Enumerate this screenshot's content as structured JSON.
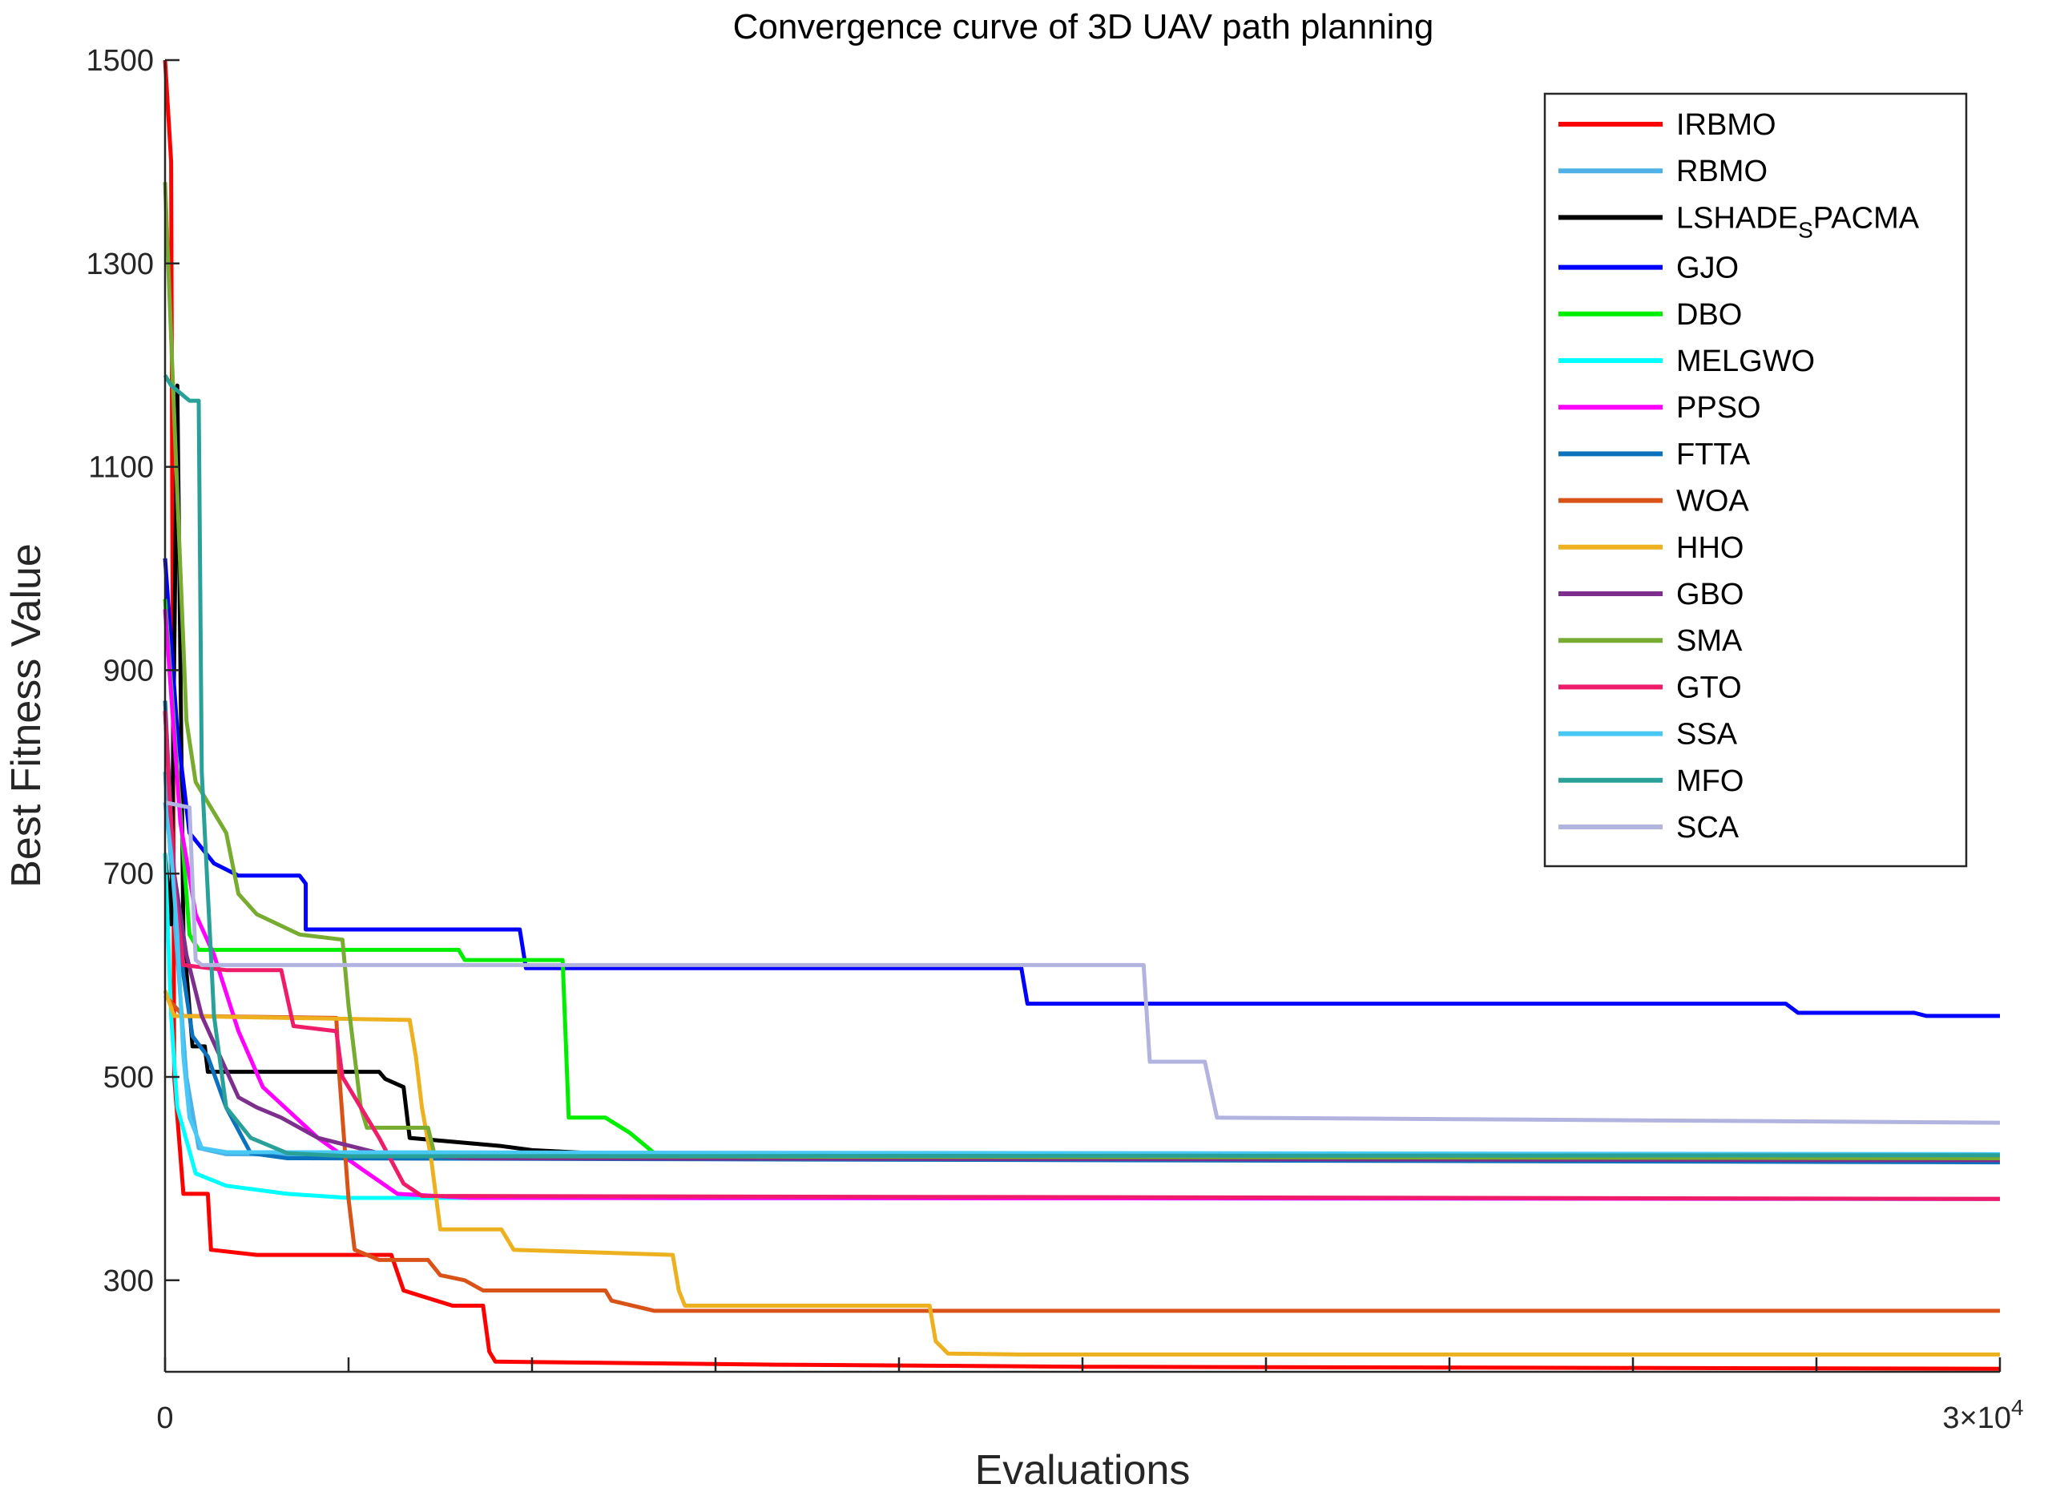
{
  "chart_data": {
    "type": "line",
    "title": "Convergence curve of 3D UAV path planning",
    "xlabel": "Evaluations",
    "ylabel": "Best Fitness Value",
    "xlim": [
      0,
      30000
    ],
    "ylim": [
      210,
      1500
    ],
    "x_tick_labels": [
      "0",
      "3×10"
    ],
    "x_tick_exponent": "4",
    "y_ticks": [
      300,
      500,
      700,
      900,
      1100,
      1300,
      1500
    ],
    "legend_position": "top-right",
    "series": [
      {
        "name": "IRBMO",
        "color": "#ff0000",
        "points": [
          [
            0,
            1500
          ],
          [
            100,
            1400
          ],
          [
            150,
            500
          ],
          [
            300,
            385
          ],
          [
            700,
            385
          ],
          [
            750,
            330
          ],
          [
            1500,
            325
          ],
          [
            3700,
            325
          ],
          [
            3900,
            290
          ],
          [
            4700,
            275
          ],
          [
            5200,
            275
          ],
          [
            5300,
            230
          ],
          [
            5400,
            220
          ],
          [
            10000,
            217
          ],
          [
            15000,
            215
          ],
          [
            30000,
            213
          ]
        ]
      },
      {
        "name": "RBMO",
        "color": "#4db0e6",
        "points": [
          [
            0,
            800
          ],
          [
            150,
            660
          ],
          [
            350,
            500
          ],
          [
            550,
            430
          ],
          [
            1000,
            424
          ],
          [
            5000,
            422
          ],
          [
            30000,
            420
          ]
        ]
      },
      {
        "name": "LSHADE_SPACMA",
        "label_main": "LSHADE",
        "label_sub": "S",
        "label_tail": "PACMA",
        "color": "#000000",
        "points": [
          [
            0,
            720
          ],
          [
            100,
            650
          ],
          [
            200,
            1180
          ],
          [
            300,
            640
          ],
          [
            450,
            530
          ],
          [
            650,
            530
          ],
          [
            700,
            505
          ],
          [
            3500,
            505
          ],
          [
            3600,
            498
          ],
          [
            3900,
            490
          ],
          [
            4000,
            440
          ],
          [
            5500,
            432
          ],
          [
            6000,
            428
          ],
          [
            7000,
            425
          ],
          [
            30000,
            418
          ]
        ]
      },
      {
        "name": "GJO",
        "color": "#0000ff",
        "points": [
          [
            0,
            1010
          ],
          [
            200,
            840
          ],
          [
            400,
            740
          ],
          [
            800,
            710
          ],
          [
            1200,
            698
          ],
          [
            2200,
            698
          ],
          [
            2300,
            690
          ],
          [
            2300,
            645
          ],
          [
            5800,
            645
          ],
          [
            5900,
            607
          ],
          [
            14000,
            607
          ],
          [
            14100,
            572
          ],
          [
            26500,
            572
          ],
          [
            26700,
            563
          ],
          [
            28600,
            563
          ],
          [
            28800,
            560
          ],
          [
            30000,
            560
          ]
        ]
      },
      {
        "name": "DBO",
        "color": "#00ee00",
        "points": [
          [
            0,
            970
          ],
          [
            250,
            760
          ],
          [
            400,
            640
          ],
          [
            550,
            625
          ],
          [
            4800,
            625
          ],
          [
            4900,
            615
          ],
          [
            6500,
            615
          ],
          [
            6600,
            460
          ],
          [
            7200,
            460
          ],
          [
            7600,
            445
          ],
          [
            8000,
            425
          ],
          [
            8500,
            420
          ],
          [
            30000,
            420
          ]
        ]
      },
      {
        "name": "MELGWO",
        "color": "#00ffff",
        "points": [
          [
            0,
            720
          ],
          [
            100,
            560
          ],
          [
            200,
            470
          ],
          [
            500,
            405
          ],
          [
            1000,
            393
          ],
          [
            2000,
            385
          ],
          [
            3000,
            381
          ],
          [
            5000,
            381
          ],
          [
            30000,
            380
          ]
        ]
      },
      {
        "name": "PPSO",
        "color": "#ff00ff",
        "points": [
          [
            0,
            960
          ],
          [
            250,
            750
          ],
          [
            500,
            660
          ],
          [
            800,
            620
          ],
          [
            1200,
            545
          ],
          [
            1600,
            490
          ],
          [
            2500,
            440
          ],
          [
            3200,
            410
          ],
          [
            3800,
            385
          ],
          [
            5000,
            381
          ],
          [
            30000,
            380
          ]
        ]
      },
      {
        "name": "FTTA",
        "color": "#0d72bd",
        "points": [
          [
            0,
            870
          ],
          [
            150,
            690
          ],
          [
            300,
            600
          ],
          [
            450,
            540
          ],
          [
            700,
            520
          ],
          [
            1000,
            470
          ],
          [
            1400,
            425
          ],
          [
            2000,
            420
          ],
          [
            30000,
            416
          ]
        ]
      },
      {
        "name": "WOA",
        "color": "#d95319",
        "points": [
          [
            0,
            580
          ],
          [
            300,
            560
          ],
          [
            2800,
            558
          ],
          [
            2850,
            500
          ],
          [
            3000,
            380
          ],
          [
            3100,
            330
          ],
          [
            3300,
            325
          ],
          [
            3500,
            320
          ],
          [
            4300,
            320
          ],
          [
            4500,
            305
          ],
          [
            4900,
            300
          ],
          [
            5200,
            290
          ],
          [
            7200,
            290
          ],
          [
            7300,
            280
          ],
          [
            8000,
            270
          ],
          [
            30000,
            270
          ]
        ]
      },
      {
        "name": "HHO",
        "color": "#edb120",
        "points": [
          [
            0,
            585
          ],
          [
            150,
            560
          ],
          [
            4000,
            556
          ],
          [
            4100,
            520
          ],
          [
            4200,
            470
          ],
          [
            4350,
            420
          ],
          [
            4500,
            350
          ],
          [
            5500,
            350
          ],
          [
            5700,
            330
          ],
          [
            8300,
            325
          ],
          [
            8400,
            290
          ],
          [
            8500,
            275
          ],
          [
            12500,
            275
          ],
          [
            12600,
            240
          ],
          [
            12800,
            228
          ],
          [
            14000,
            227
          ],
          [
            30000,
            227
          ]
        ]
      },
      {
        "name": "GBO",
        "color": "#7e2f8e",
        "points": [
          [
            0,
            860
          ],
          [
            150,
            700
          ],
          [
            350,
            620
          ],
          [
            600,
            560
          ],
          [
            900,
            520
          ],
          [
            1200,
            480
          ],
          [
            1500,
            470
          ],
          [
            1900,
            460
          ],
          [
            2500,
            440
          ],
          [
            3500,
            425
          ],
          [
            5000,
            420
          ],
          [
            30000,
            418
          ]
        ]
      },
      {
        "name": "SMA",
        "color": "#77ac30",
        "points": [
          [
            0,
            1380
          ],
          [
            150,
            1150
          ],
          [
            350,
            850
          ],
          [
            500,
            790
          ],
          [
            700,
            770
          ],
          [
            1000,
            740
          ],
          [
            1200,
            680
          ],
          [
            1500,
            660
          ],
          [
            2200,
            640
          ],
          [
            2900,
            635
          ],
          [
            3000,
            570
          ],
          [
            3200,
            470
          ],
          [
            3300,
            450
          ],
          [
            4300,
            450
          ],
          [
            4400,
            425
          ],
          [
            6000,
            422
          ],
          [
            30000,
            420
          ]
        ]
      },
      {
        "name": "GTO",
        "color": "#ef1c6a",
        "points": [
          [
            0,
            860
          ],
          [
            150,
            690
          ],
          [
            300,
            610
          ],
          [
            1000,
            605
          ],
          [
            1900,
            605
          ],
          [
            2100,
            550
          ],
          [
            2800,
            545
          ],
          [
            2900,
            500
          ],
          [
            3200,
            470
          ],
          [
            3500,
            440
          ],
          [
            3900,
            395
          ],
          [
            4200,
            383
          ],
          [
            30000,
            380
          ]
        ]
      },
      {
        "name": "SSA",
        "color": "#47c8f5",
        "points": [
          [
            0,
            770
          ],
          [
            100,
            720
          ],
          [
            200,
            640
          ],
          [
            300,
            520
          ],
          [
            400,
            460
          ],
          [
            600,
            430
          ],
          [
            1000,
            426
          ],
          [
            30000,
            424
          ]
        ]
      },
      {
        "name": "MFO",
        "color": "#2aa198",
        "points": [
          [
            0,
            1190
          ],
          [
            100,
            1180
          ],
          [
            200,
            1175
          ],
          [
            300,
            1170
          ],
          [
            400,
            1165
          ],
          [
            550,
            1165
          ],
          [
            600,
            800
          ],
          [
            800,
            560
          ],
          [
            1000,
            470
          ],
          [
            1400,
            440
          ],
          [
            2000,
            425
          ],
          [
            3000,
            422
          ],
          [
            30000,
            423
          ]
        ]
      },
      {
        "name": "SCA",
        "color": "#b3b3e0",
        "points": [
          [
            0,
            770
          ],
          [
            400,
            765
          ],
          [
            500,
            615
          ],
          [
            600,
            610
          ],
          [
            16000,
            610
          ],
          [
            16100,
            515
          ],
          [
            17000,
            515
          ],
          [
            17200,
            460
          ],
          [
            30000,
            455
          ]
        ]
      }
    ]
  }
}
